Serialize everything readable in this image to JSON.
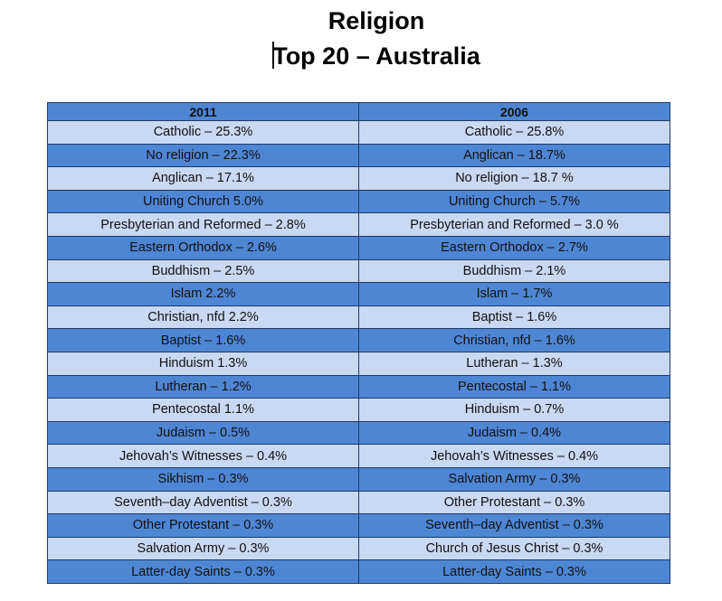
{
  "title": {
    "line1": "Religion",
    "line2": "Top 20 – Australia"
  },
  "colors": {
    "dark_row": "#4f86d4",
    "light_row": "#c9d9f1",
    "border": "#1f3864"
  },
  "table": {
    "headers": [
      "2011",
      "2006"
    ],
    "rows": [
      [
        "Catholic – 25.3%",
        "Catholic – 25.8%"
      ],
      [
        "No religion – 22.3%",
        "Anglican – 18.7%"
      ],
      [
        "Anglican – 17.1%",
        "No religion – 18.7 %"
      ],
      [
        "Uniting Church 5.0%",
        "Uniting Church  – 5.7%"
      ],
      [
        "Presbyterian and Reformed –  2.8%",
        "Presbyterian and Reformed – 3.0 %"
      ],
      [
        "Eastern Orthodox – 2.6%",
        "Eastern Orthodox – 2.7%"
      ],
      [
        "Buddhism – 2.5%",
        "Buddhism – 2.1%"
      ],
      [
        "Islam 2.2%",
        "Islam – 1.7%"
      ],
      [
        "Christian, nfd 2.2%",
        "Baptist – 1.6%"
      ],
      [
        "Baptist – 1.6%",
        "Christian, nfd – 1.6%"
      ],
      [
        "Hinduism 1.3%",
        "Lutheran – 1.3%"
      ],
      [
        "Lutheran – 1.2%",
        "Pentecostal – 1.1%"
      ],
      [
        "Pentecostal 1.1%",
        "Hinduism – 0.7%"
      ],
      [
        "Judaism – 0.5%",
        "Judaism – 0.4%"
      ],
      [
        "Jehovah’s Witnesses – 0.4%",
        "Jehovah’s Witnesses – 0.4%"
      ],
      [
        "Sikhism – 0.3%",
        "Salvation Army – 0.3%"
      ],
      [
        "Seventh–day Adventist – 0.3%",
        "Other Protestant – 0.3%"
      ],
      [
        "Other Protestant – 0.3%",
        "Seventh–day Adventist – 0.3%"
      ],
      [
        "Salvation Army – 0.3%",
        "Church of Jesus Christ – 0.3%"
      ],
      [
        "Latter-day Saints – 0.3%",
        "Latter-day Saints – 0.3%"
      ]
    ]
  }
}
